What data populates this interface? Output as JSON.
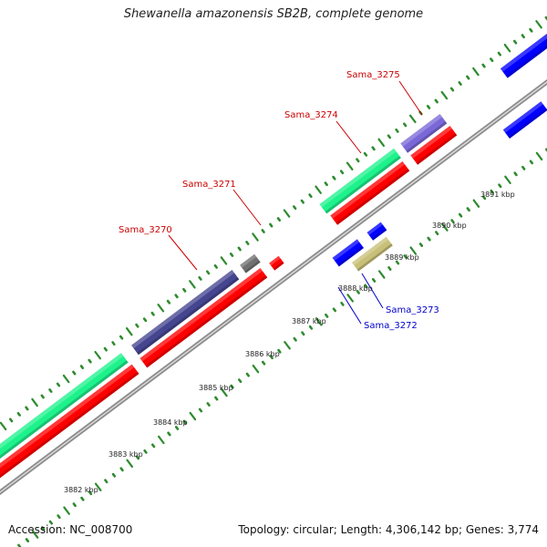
{
  "title": "Shewanella amazonensis SB2B, complete genome",
  "footer": {
    "accession": "Accession: NC_008700",
    "summary": "Topology: circular; Length: 4,306,142 bp; Genes: 3,774"
  },
  "kbp_ticks": [
    {
      "label": "3882 kbp"
    },
    {
      "label": "3883 kbp"
    },
    {
      "label": "3884 kbp"
    },
    {
      "label": "3885 kbp"
    },
    {
      "label": "3886 kbp"
    },
    {
      "label": "3887 kbp"
    },
    {
      "label": "3888 kbp"
    },
    {
      "label": "3889 kbp"
    },
    {
      "label": "3890 kbp"
    },
    {
      "label": "3891 kbp"
    }
  ],
  "gene_labels": [
    {
      "name": "Sama_3270",
      "strand": "forward",
      "color": "#cc0000"
    },
    {
      "name": "Sama_3271",
      "strand": "forward",
      "color": "#cc0000"
    },
    {
      "name": "Sama_3274",
      "strand": "forward",
      "color": "#cc0000"
    },
    {
      "name": "Sama_3275",
      "strand": "forward",
      "color": "#cc0000"
    },
    {
      "name": "Sama_3272",
      "strand": "reverse",
      "color": "#0000cc"
    },
    {
      "name": "Sama_3273",
      "strand": "reverse",
      "color": "#0000cc"
    }
  ],
  "colors": {
    "backbone": "#8c8c8c",
    "tick": "#2e8b2e",
    "cds_red": "#ff0000",
    "cds_blue": "#0000ff",
    "cds_green": "#1ef28c",
    "cds_navy": "#454590",
    "cds_gray": "#707070",
    "cds_lavender": "#7b68d8",
    "cds_khaki": "#c8c078",
    "cds_steel": "#4a7ab8"
  }
}
